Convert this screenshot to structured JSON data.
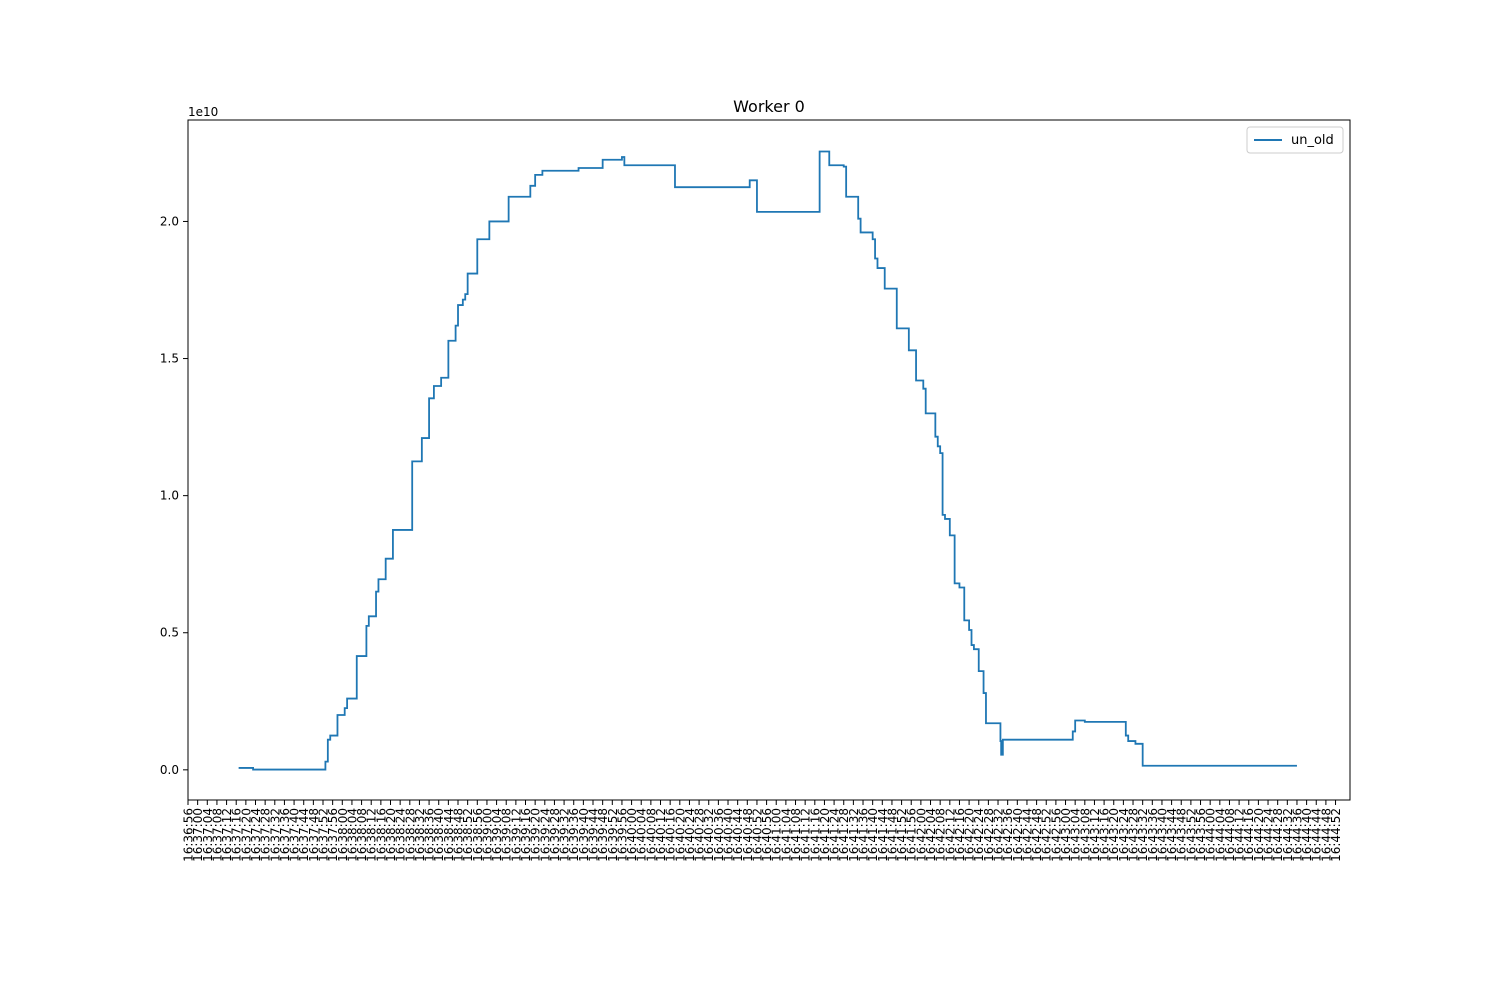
{
  "chart_data": {
    "type": "line",
    "title": "Worker 0",
    "xlabel": "",
    "ylabel": "",
    "y_offset_label": "1e10",
    "legend": {
      "position": "top-right",
      "entries": [
        "un_old"
      ]
    },
    "grid": false,
    "x_unit": "seconds since 16:36:56",
    "xlim": [
      0,
      482
    ],
    "ylim": [
      -0.11,
      2.37
    ],
    "y_ticks": [
      0.0,
      0.5,
      1.0,
      1.5,
      2.0
    ],
    "y_tick_labels": [
      "0.0",
      "0.5",
      "1.0",
      "1.5",
      "2.0"
    ],
    "x_tick_labels": [
      "16:36:56",
      "16:37:00",
      "16:37:04",
      "16:37:08",
      "16:37:12",
      "16:37:16",
      "16:37:20",
      "16:37:24",
      "16:37:28",
      "16:37:32",
      "16:37:36",
      "16:37:40",
      "16:37:44",
      "16:37:48",
      "16:37:52",
      "16:37:56",
      "16:38:00",
      "16:38:04",
      "16:38:08",
      "16:38:12",
      "16:38:16",
      "16:38:20",
      "16:38:24",
      "16:38:28",
      "16:38:32",
      "16:38:36",
      "16:38:40",
      "16:38:44",
      "16:38:48",
      "16:38:52",
      "16:38:56",
      "16:39:00",
      "16:39:04",
      "16:39:08",
      "16:39:12",
      "16:39:16",
      "16:39:20",
      "16:39:24",
      "16:39:28",
      "16:39:32",
      "16:39:36",
      "16:39:40",
      "16:39:44",
      "16:39:48",
      "16:39:52",
      "16:39:56",
      "16:40:00",
      "16:40:04",
      "16:40:08",
      "16:40:12",
      "16:40:16",
      "16:40:20",
      "16:40:24",
      "16:40:28",
      "16:40:32",
      "16:40:36",
      "16:40:40",
      "16:40:44",
      "16:40:48",
      "16:40:52",
      "16:40:56",
      "16:41:00",
      "16:41:04",
      "16:41:08",
      "16:41:12",
      "16:41:16",
      "16:41:20",
      "16:41:24",
      "16:41:28",
      "16:41:32",
      "16:41:36",
      "16:41:40",
      "16:41:44",
      "16:41:48",
      "16:41:52",
      "16:41:56",
      "16:42:00",
      "16:42:04",
      "16:42:08",
      "16:42:12",
      "16:42:16",
      "16:42:20",
      "16:42:24",
      "16:42:28",
      "16:42:32",
      "16:42:36",
      "16:42:40",
      "16:42:44",
      "16:42:48",
      "16:42:52",
      "16:42:56",
      "16:43:00",
      "16:43:04",
      "16:43:08",
      "16:43:12",
      "16:43:16",
      "16:43:20",
      "16:43:24",
      "16:43:28",
      "16:43:32",
      "16:43:36",
      "16:43:40",
      "16:43:44",
      "16:43:48",
      "16:43:52",
      "16:43:56",
      "16:44:00",
      "16:44:04",
      "16:44:08",
      "16:44:12",
      "16:44:16",
      "16:44:20",
      "16:44:24",
      "16:44:28",
      "16:44:32",
      "16:44:36",
      "16:44:40",
      "16:44:44",
      "16:44:48",
      "16:44:52"
    ],
    "series": [
      {
        "name": "un_old",
        "color": "#1f77b4",
        "step": true,
        "points": [
          [
            21,
            0.007
          ],
          [
            27,
            0.007
          ],
          [
            27,
            0.001
          ],
          [
            57,
            0.001
          ],
          [
            57,
            0.03
          ],
          [
            58,
            0.03
          ],
          [
            58,
            0.11
          ],
          [
            59,
            0.11
          ],
          [
            59,
            0.125
          ],
          [
            62,
            0.125
          ],
          [
            62,
            0.2
          ],
          [
            65,
            0.2
          ],
          [
            65,
            0.225
          ],
          [
            66,
            0.225
          ],
          [
            66,
            0.26
          ],
          [
            70,
            0.26
          ],
          [
            70,
            0.415
          ],
          [
            74,
            0.415
          ],
          [
            74,
            0.525
          ],
          [
            75,
            0.525
          ],
          [
            75,
            0.56
          ],
          [
            78,
            0.56
          ],
          [
            78,
            0.65
          ],
          [
            79,
            0.65
          ],
          [
            79,
            0.695
          ],
          [
            82,
            0.695
          ],
          [
            82,
            0.77
          ],
          [
            85,
            0.77
          ],
          [
            85,
            0.875
          ],
          [
            93,
            0.875
          ],
          [
            93,
            1.125
          ],
          [
            97,
            1.125
          ],
          [
            97,
            1.21
          ],
          [
            100,
            1.21
          ],
          [
            100,
            1.355
          ],
          [
            102,
            1.355
          ],
          [
            102,
            1.4
          ],
          [
            105,
            1.4
          ],
          [
            105,
            1.43
          ],
          [
            108,
            1.43
          ],
          [
            108,
            1.565
          ],
          [
            111,
            1.565
          ],
          [
            111,
            1.62
          ],
          [
            112,
            1.62
          ],
          [
            112,
            1.695
          ],
          [
            114,
            1.695
          ],
          [
            114,
            1.715
          ],
          [
            115,
            1.715
          ],
          [
            115,
            1.735
          ],
          [
            116,
            1.735
          ],
          [
            116,
            1.81
          ],
          [
            120,
            1.81
          ],
          [
            120,
            1.935
          ],
          [
            125,
            1.935
          ],
          [
            125,
            2.0
          ],
          [
            133,
            2.0
          ],
          [
            133,
            2.09
          ],
          [
            142,
            2.09
          ],
          [
            142,
            2.13
          ],
          [
            144,
            2.13
          ],
          [
            144,
            2.17
          ],
          [
            147,
            2.17
          ],
          [
            147,
            2.185
          ],
          [
            162,
            2.185
          ],
          [
            162,
            2.195
          ],
          [
            172,
            2.195
          ],
          [
            172,
            2.225
          ],
          [
            180,
            2.225
          ],
          [
            180,
            2.235
          ],
          [
            181,
            2.235
          ],
          [
            181,
            2.205
          ],
          [
            190,
            2.205
          ],
          [
            190,
            2.205
          ],
          [
            197,
            2.205
          ],
          [
            197,
            2.205
          ],
          [
            202,
            2.205
          ],
          [
            202,
            2.125
          ],
          [
            233,
            2.125
          ],
          [
            233,
            2.15
          ],
          [
            236,
            2.15
          ],
          [
            236,
            2.035
          ],
          [
            262,
            2.035
          ],
          [
            262,
            2.255
          ],
          [
            266,
            2.255
          ],
          [
            266,
            2.205
          ],
          [
            272,
            2.205
          ],
          [
            272,
            2.2
          ],
          [
            273,
            2.2
          ],
          [
            273,
            2.09
          ],
          [
            278,
            2.09
          ],
          [
            278,
            2.01
          ],
          [
            279,
            2.01
          ],
          [
            279,
            1.96
          ],
          [
            284,
            1.96
          ],
          [
            284,
            1.935
          ],
          [
            285,
            1.935
          ],
          [
            285,
            1.865
          ],
          [
            286,
            1.865
          ],
          [
            286,
            1.83
          ],
          [
            289,
            1.83
          ],
          [
            289,
            1.755
          ],
          [
            294,
            1.755
          ],
          [
            294,
            1.61
          ],
          [
            299,
            1.61
          ],
          [
            299,
            1.53
          ],
          [
            302,
            1.53
          ],
          [
            302,
            1.42
          ],
          [
            305,
            1.42
          ],
          [
            305,
            1.39
          ],
          [
            306,
            1.39
          ],
          [
            306,
            1.3
          ],
          [
            310,
            1.3
          ],
          [
            310,
            1.215
          ],
          [
            311,
            1.215
          ],
          [
            311,
            1.18
          ],
          [
            312,
            1.18
          ],
          [
            312,
            1.155
          ],
          [
            313,
            1.155
          ],
          [
            313,
            0.93
          ],
          [
            314,
            0.93
          ],
          [
            314,
            0.915
          ],
          [
            316,
            0.915
          ],
          [
            316,
            0.855
          ],
          [
            318,
            0.855
          ],
          [
            318,
            0.68
          ],
          [
            320,
            0.68
          ],
          [
            320,
            0.665
          ],
          [
            322,
            0.665
          ],
          [
            322,
            0.545
          ],
          [
            324,
            0.545
          ],
          [
            324,
            0.51
          ],
          [
            325,
            0.51
          ],
          [
            325,
            0.455
          ],
          [
            326,
            0.455
          ],
          [
            326,
            0.44
          ],
          [
            328,
            0.44
          ],
          [
            328,
            0.36
          ],
          [
            330,
            0.36
          ],
          [
            330,
            0.28
          ],
          [
            331,
            0.28
          ],
          [
            331,
            0.17
          ],
          [
            337,
            0.17
          ],
          [
            337,
            0.105
          ],
          [
            337.3,
            0.105
          ],
          [
            337.3,
            0.055
          ],
          [
            338,
            0.055
          ],
          [
            338,
            0.11
          ],
          [
            367,
            0.11
          ],
          [
            367,
            0.14
          ],
          [
            368,
            0.14
          ],
          [
            368,
            0.18
          ],
          [
            372,
            0.18
          ],
          [
            372,
            0.175
          ],
          [
            376,
            0.175
          ],
          [
            376,
            0.175
          ],
          [
            389,
            0.175
          ],
          [
            389,
            0.125
          ],
          [
            390,
            0.125
          ],
          [
            390,
            0.105
          ],
          [
            393,
            0.105
          ],
          [
            393,
            0.095
          ],
          [
            396,
            0.095
          ],
          [
            396,
            0.015
          ],
          [
            460,
            0.015
          ]
        ]
      }
    ]
  }
}
